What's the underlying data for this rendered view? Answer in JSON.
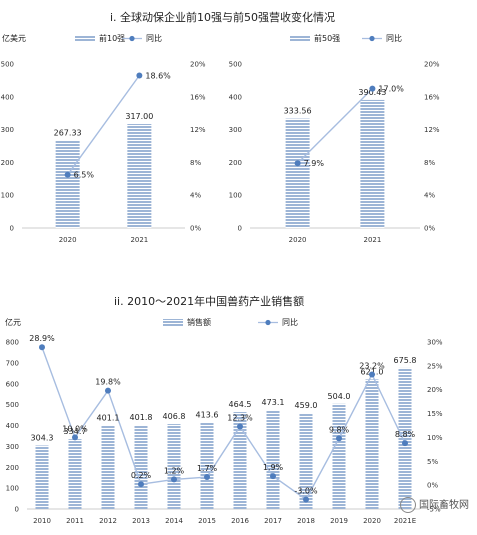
{
  "section1": {
    "title": "i. 全球动保企业前10强与前50强营收变化情况"
  },
  "section2": {
    "title": "ii. 2010～2021年中国兽药产业销售额"
  },
  "watermark": "国际畜牧网",
  "colors": {
    "bar": "#9db5d6",
    "bar_stripe": "#ffffff",
    "line": "#a7bde0",
    "marker": "#4f7dbd"
  },
  "chart_data": [
    {
      "type": "bar",
      "categories": [
        "2020",
        "2021"
      ],
      "series": [
        {
          "name": "前10强",
          "kind": "bar",
          "values": [
            267.33,
            317.0
          ],
          "labels": [
            "267.33",
            "317.00"
          ]
        },
        {
          "name": "同比",
          "kind": "line",
          "axis": "right",
          "values": [
            6.5,
            18.6
          ],
          "labels": [
            "6.5%",
            "18.6%"
          ]
        }
      ],
      "ylabel": "亿美元",
      "ylim": [
        0,
        500
      ],
      "yticks": [
        "0",
        "100",
        "200",
        "300",
        "400",
        "500"
      ],
      "y2lim": [
        0,
        20
      ],
      "y2ticks": [
        "0%",
        "4%",
        "8%",
        "12%",
        "16%",
        "20%"
      ],
      "legend": "top"
    },
    {
      "type": "bar",
      "categories": [
        "2020",
        "2021"
      ],
      "series": [
        {
          "name": "前50强",
          "kind": "bar",
          "values": [
            333.56,
            390.43
          ],
          "labels": [
            "333.56",
            "390.43"
          ]
        },
        {
          "name": "同比",
          "kind": "line",
          "axis": "right",
          "values": [
            7.9,
            17.0
          ],
          "labels": [
            "7.9%",
            "17.0%"
          ]
        }
      ],
      "ylim": [
        0,
        500
      ],
      "yticks": [
        "0",
        "100",
        "200",
        "300",
        "400",
        "500"
      ],
      "y2lim": [
        0,
        20
      ],
      "y2ticks": [
        "0%",
        "4%",
        "8%",
        "12%",
        "16%",
        "20%"
      ],
      "legend": "top"
    },
    {
      "type": "bar",
      "categories": [
        "2010",
        "2011",
        "2012",
        "2013",
        "2014",
        "2015",
        "2016",
        "2017",
        "2018",
        "2019",
        "2020",
        "2021E"
      ],
      "series": [
        {
          "name": "销售额",
          "kind": "bar",
          "values": [
            304.3,
            334.7,
            401.1,
            401.8,
            406.8,
            413.6,
            464.5,
            473.1,
            459.0,
            504.0,
            621.0,
            675.8
          ],
          "labels": [
            "304.3",
            "334.7",
            "401.1",
            "401.8",
            "406.8",
            "413.6",
            "464.5",
            "473.1",
            "459.0",
            "504.0",
            "621.0",
            "675.8"
          ]
        },
        {
          "name": "同比",
          "kind": "line",
          "axis": "right",
          "values": [
            28.9,
            10.0,
            19.8,
            0.2,
            1.2,
            1.7,
            12.3,
            1.9,
            -3.0,
            9.8,
            23.2,
            8.8
          ],
          "labels": [
            "28.9%",
            "10.0%",
            "19.8%",
            "0.2%",
            "1.2%",
            "1.7%",
            "12.3%",
            "1.9%",
            "-3.0%",
            "9.8%",
            "23.2%",
            "8.8%"
          ]
        }
      ],
      "ylabel": "亿元",
      "ylim": [
        0,
        800
      ],
      "yticks": [
        "0",
        "100",
        "200",
        "300",
        "400",
        "500",
        "600",
        "700",
        "800"
      ],
      "y2lim": [
        -5,
        30
      ],
      "y2ticks": [
        "-5%",
        "0%",
        "5%",
        "10%",
        "15%",
        "20%",
        "25%",
        "30%"
      ],
      "legend": "top"
    }
  ]
}
